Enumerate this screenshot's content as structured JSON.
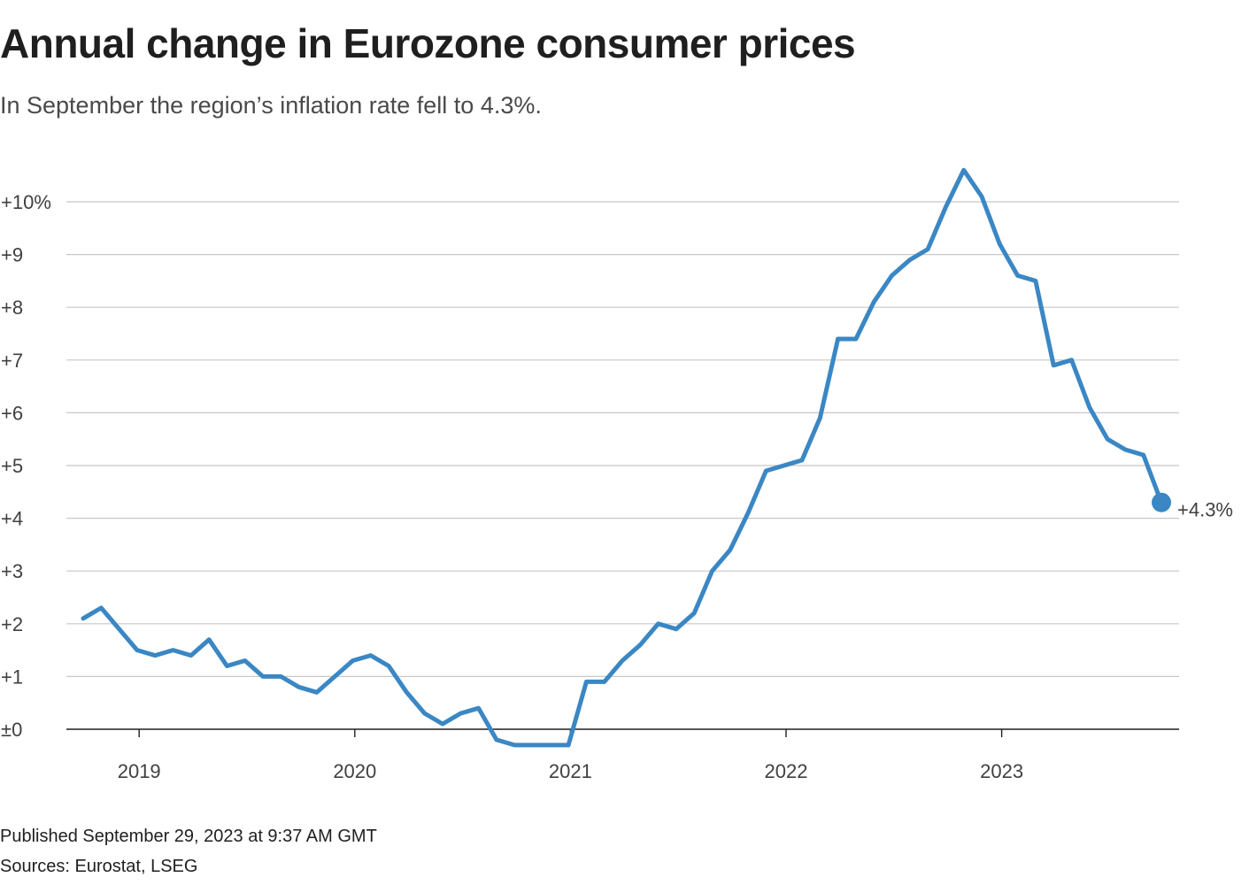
{
  "title": "Annual change in Eurozone consumer prices",
  "subtitle": "In September the region’s inflation rate fell to 4.3%.",
  "published": "Published September 29, 2023 at 9:37 AM GMT",
  "sources": "Sources: Eurostat, LSEG",
  "colors": {
    "line": "#3a87c4",
    "grid": "#c8c8c8",
    "zero_axis": "#1f1f1f"
  },
  "chart_data": {
    "type": "line",
    "title": "Annual change in Eurozone consumer prices",
    "xlabel": "",
    "ylabel": "",
    "ylim": [
      0,
      10
    ],
    "yticks": [
      {
        "value": 10,
        "label": "+10%"
      },
      {
        "value": 9,
        "label": "+9"
      },
      {
        "value": 8,
        "label": "+8"
      },
      {
        "value": 7,
        "label": "+7"
      },
      {
        "value": 6,
        "label": "+6"
      },
      {
        "value": 5,
        "label": "+5"
      },
      {
        "value": 4,
        "label": "+4"
      },
      {
        "value": 3,
        "label": "+3"
      },
      {
        "value": 2,
        "label": "+2"
      },
      {
        "value": 1,
        "label": "+1"
      },
      {
        "value": 0,
        "label": "±0"
      }
    ],
    "xticks": [
      {
        "index": 4,
        "label": "2019"
      },
      {
        "index": 16,
        "label": "2020"
      },
      {
        "index": 28,
        "label": "2021"
      },
      {
        "index": 40,
        "label": "2022"
      },
      {
        "index": 52,
        "label": "2023"
      }
    ],
    "start": "2018-09",
    "end": "2023-09",
    "series": [
      {
        "name": "Annual change in consumer prices (%)",
        "values": [
          2.1,
          2.3,
          1.9,
          1.5,
          1.4,
          1.5,
          1.4,
          1.7,
          1.2,
          1.3,
          1.0,
          1.0,
          0.8,
          0.7,
          1.0,
          1.3,
          1.4,
          1.2,
          0.7,
          0.3,
          0.1,
          0.3,
          0.4,
          -0.2,
          -0.3,
          -0.3,
          -0.3,
          -0.3,
          0.9,
          0.9,
          1.3,
          1.6,
          2.0,
          1.9,
          2.2,
          3.0,
          3.4,
          4.1,
          4.9,
          5.0,
          5.1,
          5.9,
          7.4,
          7.4,
          8.1,
          8.6,
          8.9,
          9.1,
          9.9,
          10.6,
          10.1,
          9.2,
          8.6,
          8.5,
          6.9,
          7.0,
          6.1,
          5.5,
          5.3,
          5.2,
          4.3
        ]
      }
    ],
    "end_label": "+4.3%"
  }
}
